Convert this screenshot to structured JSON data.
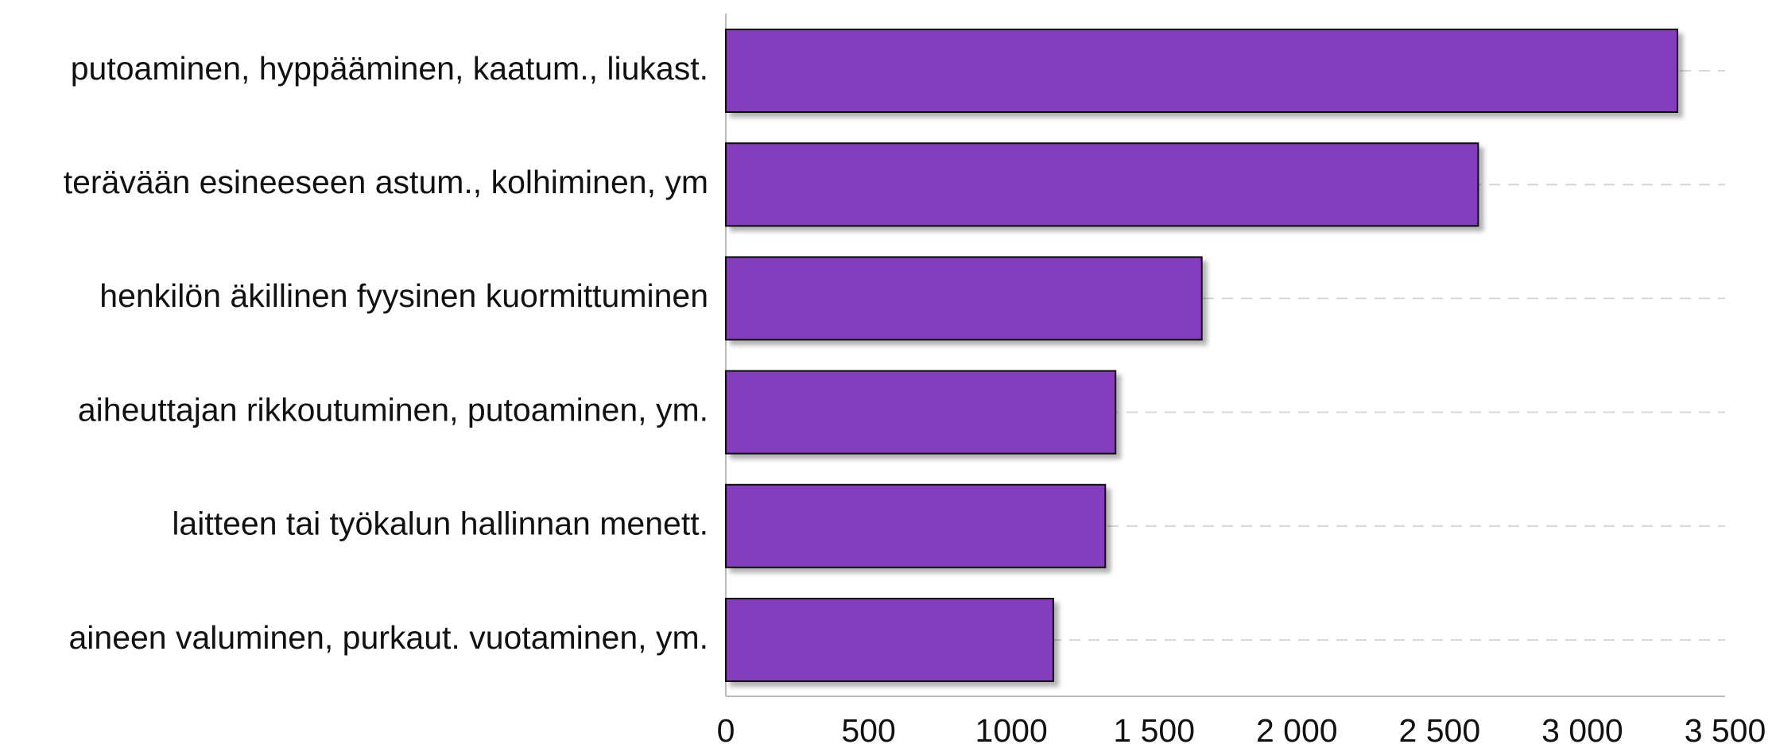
{
  "chart_data": {
    "type": "bar",
    "orientation": "horizontal",
    "categories": [
      "putoaminen, hyppääminen, kaatum., liukast.",
      "terävään esineeseen astum., kolhiminen, ym",
      "henkilön äkillinen fyysinen kuormittuminen",
      "aiheuttajan rikkoutuminen, putoaminen, ym.",
      "laitteen tai työkalun hallinnan menett.",
      "aineen valuminen, purkaut. vuotaminen, ym."
    ],
    "values": [
      3333,
      2635,
      1667,
      1365,
      1329,
      1147
    ],
    "color": "#843cbd",
    "xlim": [
      0,
      3500
    ],
    "xticks": [
      0,
      500,
      1000,
      {
        "value": 1500,
        "label": "1 500"
      },
      {
        "value": 2000,
        "label": "2 000"
      },
      {
        "value": 2500,
        "label": "2 500"
      },
      {
        "value": 3000,
        "label": "3 000"
      },
      {
        "value": 3500,
        "label": "3 500"
      }
    ],
    "grid": true
  }
}
